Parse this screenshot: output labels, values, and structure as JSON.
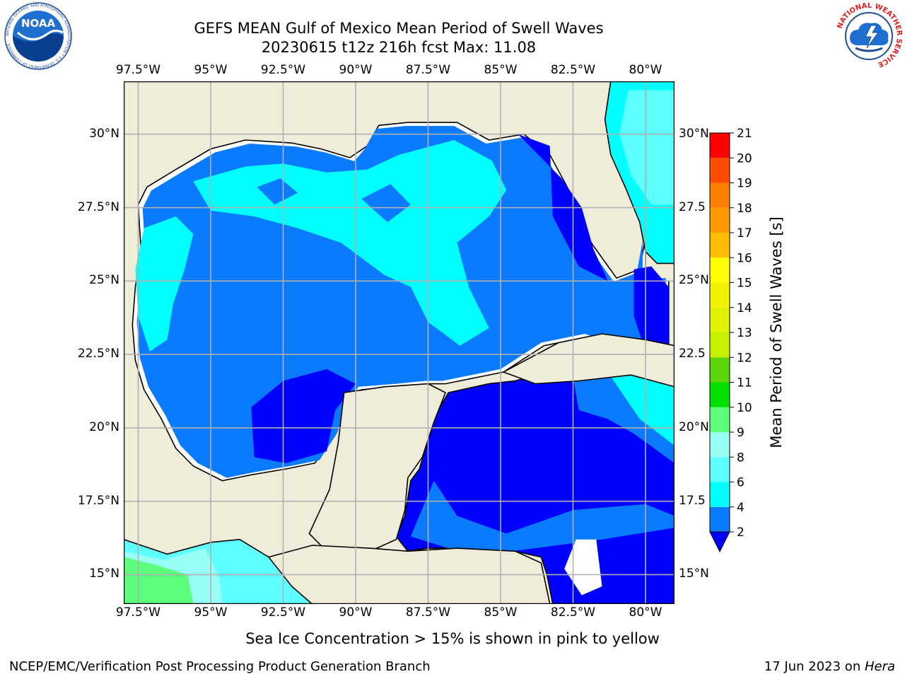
{
  "header": {
    "title_line1": "GEFS MEAN Gulf of Mexico Mean Period of Swell Waves",
    "title_line2": "20230615 t12z 216h fcst   Max: 11.08"
  },
  "logos": {
    "noaa_text": "NOAA",
    "noaa_ring_text": "NATIONAL OCEANIC AND ATMOSPHERIC ADMINISTRATION • U.S. DEPARTMENT OF COMMERCE",
    "nws_ring_text": "NATIONAL WEATHER SERVICE"
  },
  "map": {
    "lon_labels": [
      "97.5°W",
      "95°W",
      "92.5°W",
      "90°W",
      "87.5°W",
      "85°W",
      "82.5°W",
      "80°W"
    ],
    "lat_labels": [
      "30°N",
      "27.5°N",
      "25°N",
      "22.5°N",
      "20°N",
      "17.5°N",
      "15°N"
    ],
    "lat_labels_right": [
      "30°N",
      "27.5",
      "25°N",
      "22.5",
      "20°N",
      "17.5",
      "15°N"
    ],
    "lon_range": [
      -98,
      -79
    ],
    "lat_range": [
      14,
      31.8
    ],
    "colors": {
      "land": "#efedd9",
      "sea_2_4": "#0a7bff",
      "sea_lt2": "#0000ff",
      "sea_4_6": "#00ffff",
      "sea_6_8": "#5dffff",
      "sea_8_9": "#99fff5",
      "sea_9_10": "#5bff7a",
      "missing": "#ffffff",
      "grid": "#b0b0b0"
    }
  },
  "colorbar": {
    "label": "Mean Period of Swell Waves [s]",
    "ticks": [
      "21",
      "20",
      "19",
      "18",
      "17",
      "16",
      "15",
      "14",
      "13",
      "12",
      "11",
      "10",
      "9",
      "8",
      "6",
      "4",
      "2"
    ],
    "bands": [
      {
        "from": 2,
        "to": 4,
        "color": "#0a7bff"
      },
      {
        "from": 4,
        "to": 6,
        "color": "#00ffff"
      },
      {
        "from": 6,
        "to": 8,
        "color": "#5dffff"
      },
      {
        "from": 8,
        "to": 9,
        "color": "#99fff5"
      },
      {
        "from": 9,
        "to": 10,
        "color": "#5bff7a"
      },
      {
        "from": 10,
        "to": 11,
        "color": "#00e000"
      },
      {
        "from": 11,
        "to": 12,
        "color": "#5cd60a"
      },
      {
        "from": 12,
        "to": 13,
        "color": "#c6f200"
      },
      {
        "from": 13,
        "to": 14,
        "color": "#dff200"
      },
      {
        "from": 14,
        "to": 15,
        "color": "#f2f200"
      },
      {
        "from": 15,
        "to": 16,
        "color": "#ffff00"
      },
      {
        "from": 16,
        "to": 17,
        "color": "#ffbf00"
      },
      {
        "from": 17,
        "to": 18,
        "color": "#ff9900"
      },
      {
        "from": 18,
        "to": 19,
        "color": "#ff7f00"
      },
      {
        "from": 19,
        "to": 20,
        "color": "#ff4d00"
      },
      {
        "from": 20,
        "to": 21,
        "color": "#ff0000"
      }
    ],
    "under_color": "#0000ff"
  },
  "footer": {
    "note": "Sea Ice Concentration > 15% is shown in pink to yellow",
    "credit": "NCEP/EMC/Verification Post Processing Product Generation Branch",
    "date": "17 Jun 2023 on ",
    "host": "Hera"
  }
}
